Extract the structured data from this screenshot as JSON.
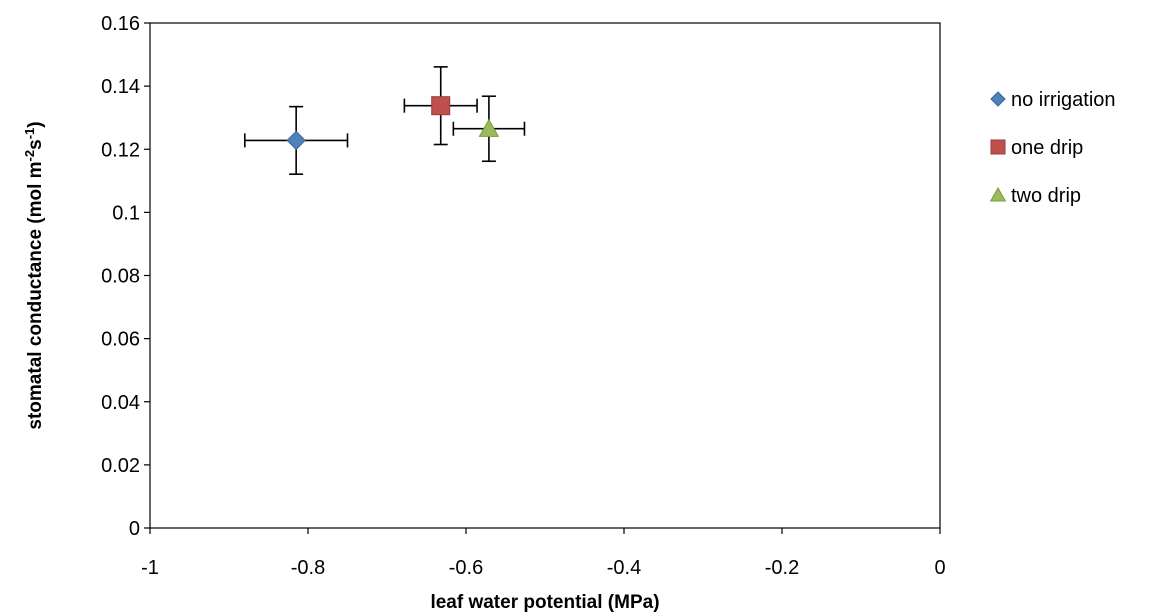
{
  "chart_data": {
    "type": "scatter",
    "title": "",
    "xlabel": "leaf water potential (MPa)",
    "ylabel": {
      "prefix": "stomatal conductance (mol m",
      "sup1": "-2",
      "middle": "s",
      "sup2": "-1",
      "suffix": ")"
    },
    "xlim": [
      -1,
      0
    ],
    "ylim": [
      0,
      0.16
    ],
    "x_ticks": [
      -1,
      -0.8,
      -0.6,
      -0.4,
      -0.2,
      0
    ],
    "x_tick_labels": [
      "-1",
      "-0.8",
      "-0.6",
      "-0.4",
      "-0.2",
      "0"
    ],
    "y_ticks": [
      0,
      0.02,
      0.04,
      0.06,
      0.08,
      0.1,
      0.12,
      0.14,
      0.16
    ],
    "y_tick_labels": [
      "0",
      "0.02",
      "0.04",
      "0.06",
      "0.08",
      "0.1",
      "0.12",
      "0.14",
      "0.16"
    ],
    "grid": false,
    "legend_position": "right",
    "series": [
      {
        "name": "no irrigation",
        "marker": "diamond",
        "color": "#4F81BD",
        "x": -0.815,
        "y": 0.1228,
        "x_err": 0.065,
        "y_err": 0.0107
      },
      {
        "name": "one drip",
        "marker": "square",
        "color": "#C0504D",
        "x": -0.632,
        "y": 0.1338,
        "x_err": 0.046,
        "y_err": 0.0123
      },
      {
        "name": "two drip",
        "marker": "triangle",
        "color": "#9BBB59",
        "x": -0.571,
        "y": 0.1265,
        "x_err": 0.045,
        "y_err": 0.0103
      }
    ]
  }
}
